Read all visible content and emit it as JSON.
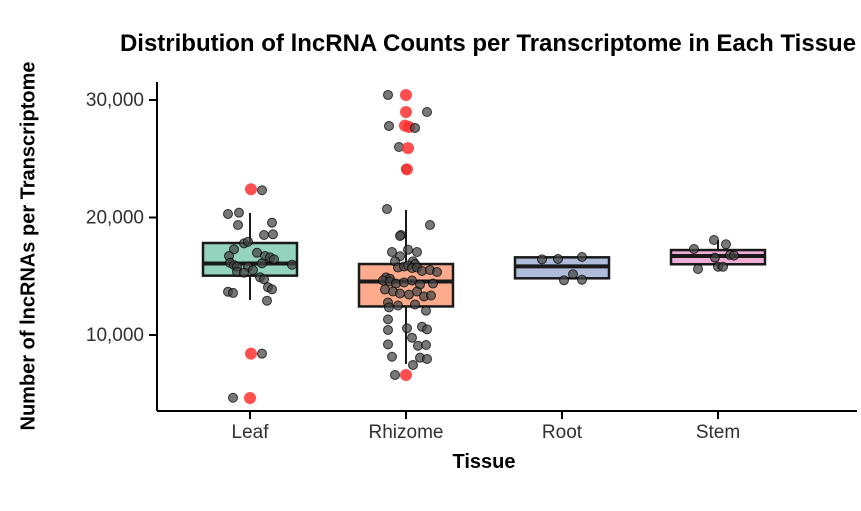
{
  "title": "Distribution of lncRNA Counts per Transcriptome in Each Tissue",
  "axes": {
    "x_label": "Tissue",
    "y_label": "Number of lncRNAs per Transcriptome",
    "x_categories": [
      "Leaf",
      "Rhizome",
      "Root",
      "Stem"
    ],
    "y_ticks": [
      {
        "value": 10000,
        "label": "10,000"
      },
      {
        "value": 20000,
        "label": "20,000"
      },
      {
        "value": 30000,
        "label": "30,000"
      }
    ]
  },
  "style": {
    "axis_color": "#000000",
    "tick_label_color": "#303030",
    "box_border_color": "#1a1a1a",
    "point_color": "#444444",
    "outlier_color": "#ff3030"
  },
  "chart_data": {
    "type": "boxplot-with-jitter",
    "title": "Distribution of lncRNA Counts per Transcriptome in Each Tissue",
    "xlabel": "Tissue",
    "ylabel": "Number of lncRNAs per Transcriptome",
    "ylim": [
      3500,
      31600
    ],
    "grid": false,
    "legend": "none",
    "categories": [
      "Leaf",
      "Rhizome",
      "Root",
      "Stem"
    ],
    "groups": [
      {
        "name": "Leaf",
        "fill": "#94d4bf",
        "box": {
          "whisker_low": 12980,
          "q1": 15050,
          "median": 16080,
          "q3": 17830,
          "whisker_high": 20380
        },
        "points": [
          {
            "dx": 1,
            "value": 22400,
            "red": true
          },
          {
            "dx": 12,
            "value": 22320
          },
          {
            "dx": -22,
            "value": 20300
          },
          {
            "dx": -11,
            "value": 20410
          },
          {
            "dx": -12,
            "value": 19360
          },
          {
            "dx": 22,
            "value": 19560
          },
          {
            "dx": 14,
            "value": 18510
          },
          {
            "dx": 23,
            "value": 18570
          },
          {
            "dx": -6,
            "value": 17800
          },
          {
            "dx": -2,
            "value": 17940
          },
          {
            "dx": -16,
            "value": 17290
          },
          {
            "dx": 7,
            "value": 17000
          },
          {
            "dx": -21,
            "value": 16720
          },
          {
            "dx": 15,
            "value": 16720
          },
          {
            "dx": 20,
            "value": 16610
          },
          {
            "dx": 24,
            "value": 16440
          },
          {
            "dx": -20,
            "value": 16150
          },
          {
            "dx": -16,
            "value": 15950
          },
          {
            "dx": -13,
            "value": 15820
          },
          {
            "dx": 12,
            "value": 16100
          },
          {
            "dx": 42,
            "value": 15980
          },
          {
            "dx": -2,
            "value": 15810
          },
          {
            "dx": -13,
            "value": 15385
          },
          {
            "dx": -6,
            "value": 15300
          },
          {
            "dx": 3,
            "value": 15530
          },
          {
            "dx": 10,
            "value": 14910
          },
          {
            "dx": 14,
            "value": 14740
          },
          {
            "dx": 18,
            "value": 14060
          },
          {
            "dx": 22,
            "value": 13890
          },
          {
            "dx": -22,
            "value": 13685
          },
          {
            "dx": -17,
            "value": 13580
          },
          {
            "dx": 17,
            "value": 12920
          },
          {
            "dx": 1,
            "value": 8410,
            "red": true
          },
          {
            "dx": 12,
            "value": 8410
          },
          {
            "dx": -17,
            "value": 4660
          },
          {
            "dx": 0,
            "value": 4640,
            "red": true
          }
        ]
      },
      {
        "name": "Rhizome",
        "fill": "#fcab8c",
        "box": {
          "whisker_low": 7530,
          "q1": 12430,
          "median": 14550,
          "q3": 16040,
          "whisker_high": 20640
        },
        "points": [
          {
            "dx": -18,
            "value": 30430
          },
          {
            "dx": 0,
            "value": 30430,
            "red": true
          },
          {
            "dx": 0,
            "value": 28980,
            "red": true
          },
          {
            "dx": 21,
            "value": 28980
          },
          {
            "dx": -17,
            "value": 27790
          },
          {
            "dx": -1,
            "value": 27820,
            "red": true
          },
          {
            "dx": 3,
            "value": 27700,
            "red": true
          },
          {
            "dx": 9,
            "value": 27620
          },
          {
            "dx": -7,
            "value": 26000
          },
          {
            "dx": 2,
            "value": 25900,
            "red": true
          },
          {
            "dx": 0,
            "value": 24130
          },
          {
            "dx": 1,
            "value": 24100,
            "red": true
          },
          {
            "dx": -19,
            "value": 20720
          },
          {
            "dx": 24,
            "value": 19360
          },
          {
            "dx": -5,
            "value": 18510
          },
          {
            "dx": -6,
            "value": 18430
          },
          {
            "dx": 2,
            "value": 17260
          },
          {
            "dx": 11,
            "value": 17060
          },
          {
            "dx": -14,
            "value": 17060
          },
          {
            "dx": -6,
            "value": 16700
          },
          {
            "dx": 7,
            "value": 16270
          },
          {
            "dx": -11,
            "value": 16270
          },
          {
            "dx": 9,
            "value": 16040
          },
          {
            "dx": -8,
            "value": 15740
          },
          {
            "dx": -2,
            "value": 15830
          },
          {
            "dx": 2,
            "value": 15910
          },
          {
            "dx": 6,
            "value": 15700
          },
          {
            "dx": 11,
            "value": 15740
          },
          {
            "dx": 16,
            "value": 15450
          },
          {
            "dx": 24,
            "value": 15530
          },
          {
            "dx": 31,
            "value": 15360
          },
          {
            "dx": -20,
            "value": 14900
          },
          {
            "dx": -16,
            "value": 14790
          },
          {
            "dx": -23,
            "value": 14640
          },
          {
            "dx": -16,
            "value": 14550
          },
          {
            "dx": -10,
            "value": 14380
          },
          {
            "dx": -2,
            "value": 14470
          },
          {
            "dx": 6,
            "value": 14640
          },
          {
            "dx": 14,
            "value": 14300
          },
          {
            "dx": 27,
            "value": 14380
          },
          {
            "dx": -21,
            "value": 13870
          },
          {
            "dx": -13,
            "value": 13700
          },
          {
            "dx": -6,
            "value": 13530
          },
          {
            "dx": 3,
            "value": 13440
          },
          {
            "dx": 11,
            "value": 13700
          },
          {
            "dx": 18,
            "value": 13280
          },
          {
            "dx": 25,
            "value": 13360
          },
          {
            "dx": -18,
            "value": 12770
          },
          {
            "dx": -8,
            "value": 12510
          },
          {
            "dx": 9,
            "value": 12600
          },
          {
            "dx": -17,
            "value": 12350
          },
          {
            "dx": 20,
            "value": 12070
          },
          {
            "dx": -18,
            "value": 11330
          },
          {
            "dx": 1,
            "value": 10570
          },
          {
            "dx": 16,
            "value": 10700
          },
          {
            "dx": 21,
            "value": 10480
          },
          {
            "dx": -18,
            "value": 10430
          },
          {
            "dx": 6,
            "value": 9770
          },
          {
            "dx": 12,
            "value": 9090
          },
          {
            "dx": 20,
            "value": 9150
          },
          {
            "dx": -18,
            "value": 9200
          },
          {
            "dx": -14,
            "value": 8150
          },
          {
            "dx": 14,
            "value": 8070
          },
          {
            "dx": 21,
            "value": 7960
          },
          {
            "dx": 7,
            "value": 7450
          },
          {
            "dx": -11,
            "value": 6600
          },
          {
            "dx": 0,
            "value": 6600,
            "red": true
          }
        ]
      },
      {
        "name": "Root",
        "fill": "#afbddb",
        "box": {
          "whisker_low": 14825,
          "q1": 14825,
          "median": 15845,
          "q3": 16610,
          "whisker_high": 16610
        },
        "points": [
          {
            "dx": -20,
            "value": 16440
          },
          {
            "dx": -4,
            "value": 16470
          },
          {
            "dx": 20,
            "value": 16640
          },
          {
            "dx": 11,
            "value": 15165
          },
          {
            "dx": 2,
            "value": 14655
          },
          {
            "dx": 20,
            "value": 14706
          }
        ]
      },
      {
        "name": "Stem",
        "fill": "#efadd6",
        "box": {
          "whisker_low": 15620,
          "q1": 16020,
          "median": 16720,
          "q3": 17230,
          "whisker_high": 18080
        },
        "points": [
          {
            "dx": -4,
            "value": 18085
          },
          {
            "dx": 8,
            "value": 17720
          },
          {
            "dx": -24,
            "value": 17320
          },
          {
            "dx": 12,
            "value": 16805
          },
          {
            "dx": 16,
            "value": 16760
          },
          {
            "dx": -3,
            "value": 16580
          },
          {
            "dx": 0,
            "value": 15810
          },
          {
            "dx": 5,
            "value": 15810
          },
          {
            "dx": -20,
            "value": 15615
          }
        ]
      }
    ]
  }
}
